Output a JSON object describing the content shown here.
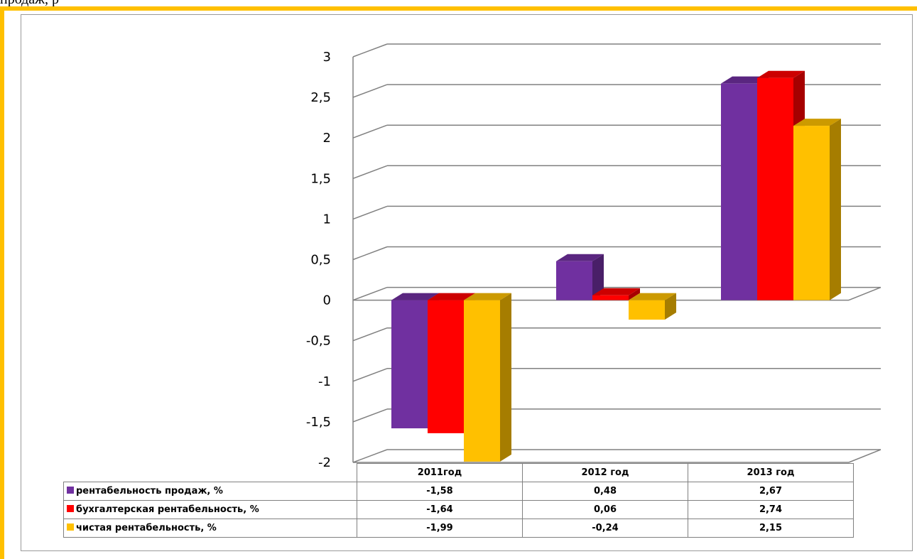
{
  "header_text": "продаж, р",
  "colors": {
    "frame": "#FFC000"
  },
  "chart_data": {
    "type": "bar",
    "title": "",
    "categories": [
      "2011год",
      "2012 год",
      "2013 год"
    ],
    "series": [
      {
        "name": "рентабельность продаж, %",
        "values": [
          -1.58,
          0.48,
          2.67
        ],
        "labels": [
          "-1,58",
          "0,48",
          "2,67"
        ],
        "color": "#7030A0"
      },
      {
        "name": "бухгалтерская рентабельность, %",
        "values": [
          -1.64,
          0.06,
          2.74
        ],
        "labels": [
          "-1,64",
          "0,06",
          "2,74"
        ],
        "color": "#FF0000"
      },
      {
        "name": "чистая рентабельность, %",
        "values": [
          -1.99,
          -0.24,
          2.15
        ],
        "labels": [
          "-1,99",
          "-0,24",
          "2,15"
        ],
        "color": "#FFC000"
      }
    ],
    "y_ticks": [
      "3",
      "2,5",
      "2",
      "1,5",
      "1",
      "0,5",
      "0",
      "-0,5",
      "-1",
      "-1,5",
      "-2"
    ],
    "ylim": [
      -2,
      3
    ],
    "grid": true,
    "legend": "data-table"
  }
}
